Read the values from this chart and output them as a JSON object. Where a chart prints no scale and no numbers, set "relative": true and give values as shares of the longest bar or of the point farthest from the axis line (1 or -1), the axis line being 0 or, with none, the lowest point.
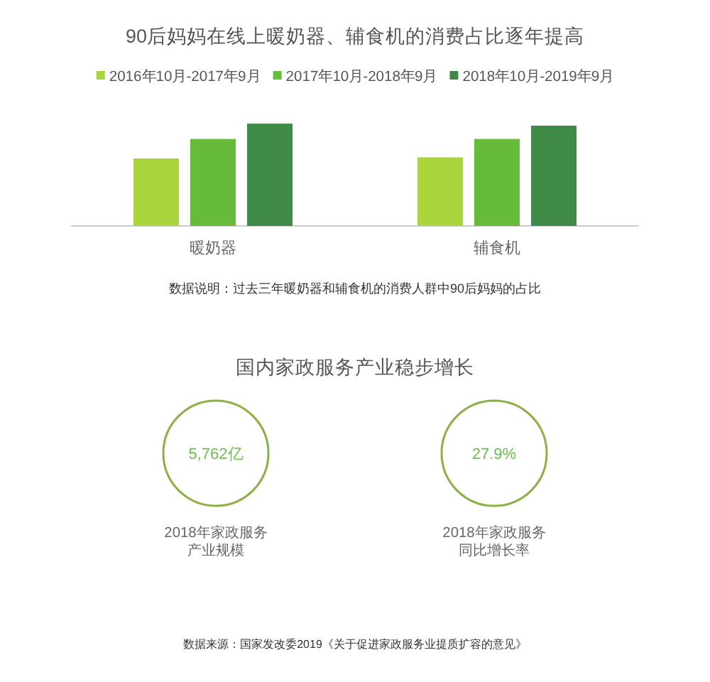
{
  "chart_data": [
    {
      "type": "bar",
      "title": "90后妈妈在线上暖奶器、辅食机的消费占比逐年提高",
      "categories": [
        "暖奶器",
        "辅食机"
      ],
      "relative": true,
      "legend": "top",
      "series": [
        {
          "name": "2016年10月-2017年9月",
          "color": "#a9d43c",
          "values": [
            0.66,
            0.67
          ]
        },
        {
          "name": "2017年10月-2018年9月",
          "color": "#66bb3b",
          "values": [
            0.85,
            0.85
          ]
        },
        {
          "name": "2018年10月-2019年9月",
          "color": "#3f8a46",
          "values": [
            1,
            0.98
          ]
        }
      ],
      "annotations": [
        "数据说明：过去三年暖奶器和辅食机的消费人群中90后妈妈的占比"
      ]
    },
    {
      "type": "other",
      "title": "国内家政服务产业稳步增长",
      "categories": [
        "2018年家政服务产业规模",
        "2018年家政服务同比增长率"
      ],
      "value_labels": [
        "5,762亿",
        "27.9%"
      ],
      "colors": [
        "#8cb046",
        "#8cb046"
      ],
      "annotations": [
        "数据来源：国家发改委2019《关于促进家政服务业提质扩容的意见》"
      ]
    }
  ]
}
